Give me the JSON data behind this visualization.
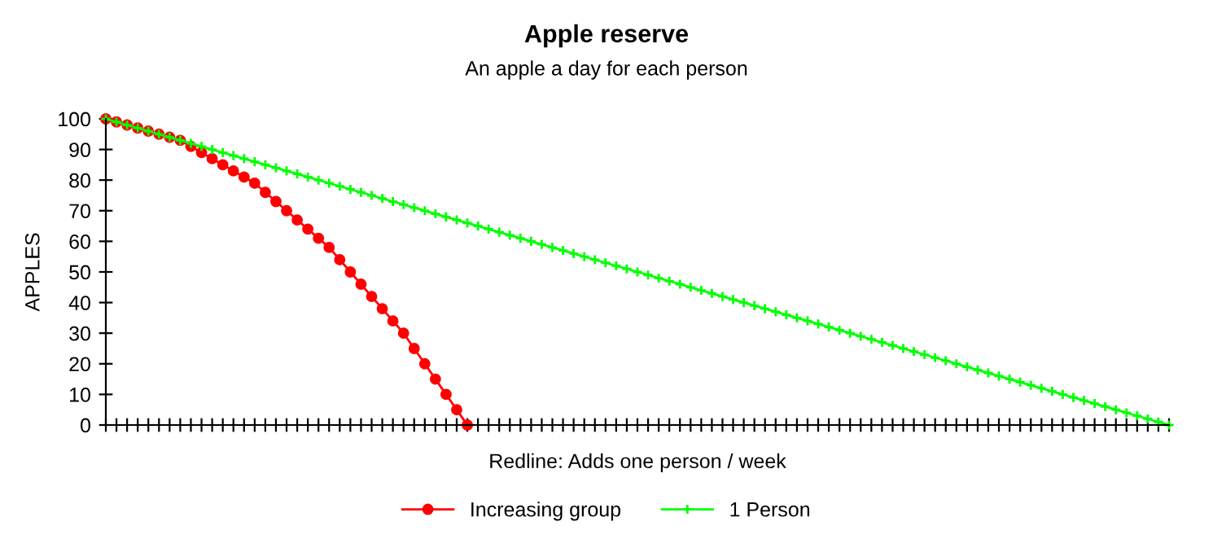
{
  "chart_data": {
    "type": "line",
    "title": "Apple reserve",
    "subtitle": "An apple a day for each person",
    "xlabel": "Redline: Adds one person / week",
    "ylabel": "APPLES",
    "categories": [
      null,
      null,
      null,
      null,
      null,
      null,
      null,
      null,
      null,
      null,
      null,
      null,
      null,
      null,
      null,
      null,
      null,
      null,
      null,
      null,
      null,
      null,
      null,
      null,
      null,
      null,
      null,
      null,
      null,
      null,
      null,
      null,
      null,
      null,
      null,
      null,
      null,
      null,
      null,
      null,
      null,
      null,
      null,
      null,
      null,
      null,
      null,
      null,
      null,
      null,
      null,
      null,
      null,
      null,
      null,
      null,
      null,
      null,
      null,
      null,
      null,
      null,
      null,
      null,
      null,
      null,
      null,
      null,
      null,
      null,
      null,
      null,
      null,
      null,
      null,
      null,
      null,
      null,
      null,
      null,
      null,
      null,
      null,
      null,
      null,
      null,
      null,
      null,
      null,
      null,
      null,
      null,
      null,
      null,
      null,
      null,
      null,
      null,
      null,
      null,
      null
    ],
    "ylim": [
      0,
      100
    ],
    "yticks": [
      0,
      10,
      20,
      30,
      40,
      50,
      60,
      70,
      80,
      90,
      100
    ],
    "legend": "bottom",
    "series": [
      {
        "name": "Increasing group",
        "color": "#ff0000",
        "marker": "circle",
        "values": [
          100,
          99,
          98,
          97,
          96,
          95,
          94,
          93,
          91,
          89,
          87,
          85,
          83,
          81,
          79,
          76,
          73,
          70,
          67,
          64,
          61,
          58,
          54,
          50,
          46,
          42,
          38,
          34,
          30,
          25,
          20,
          15,
          10,
          5,
          0,
          null,
          null,
          null,
          null,
          null,
          null,
          null,
          null,
          null,
          null,
          null,
          null,
          null,
          null,
          null,
          null,
          null,
          null,
          null,
          null,
          null,
          null,
          null,
          null,
          null,
          null,
          null,
          null,
          null,
          null,
          null,
          null,
          null,
          null,
          null,
          null,
          null,
          null,
          null,
          null,
          null,
          null,
          null,
          null,
          null,
          null,
          null,
          null,
          null,
          null,
          null,
          null,
          null,
          null,
          null,
          null,
          null,
          null,
          null,
          null,
          null,
          null,
          null,
          null,
          null,
          null
        ]
      },
      {
        "name": "1 Person",
        "color": "#00ff00",
        "marker": "cross",
        "values": [
          100,
          99,
          98,
          97,
          96,
          95,
          94,
          93,
          92,
          91,
          90,
          89,
          88,
          87,
          86,
          85,
          84,
          83,
          82,
          81,
          80,
          79,
          78,
          77,
          76,
          75,
          74,
          73,
          72,
          71,
          70,
          69,
          68,
          67,
          66,
          65,
          64,
          63,
          62,
          61,
          60,
          59,
          58,
          57,
          56,
          55,
          54,
          53,
          52,
          51,
          50,
          49,
          48,
          47,
          46,
          45,
          44,
          43,
          42,
          41,
          40,
          39,
          38,
          37,
          36,
          35,
          34,
          33,
          32,
          31,
          30,
          29,
          28,
          27,
          26,
          25,
          24,
          23,
          22,
          21,
          20,
          19,
          18,
          17,
          16,
          15,
          14,
          13,
          12,
          11,
          10,
          9,
          8,
          7,
          6,
          5,
          4,
          3,
          2,
          1,
          0
        ]
      }
    ]
  }
}
